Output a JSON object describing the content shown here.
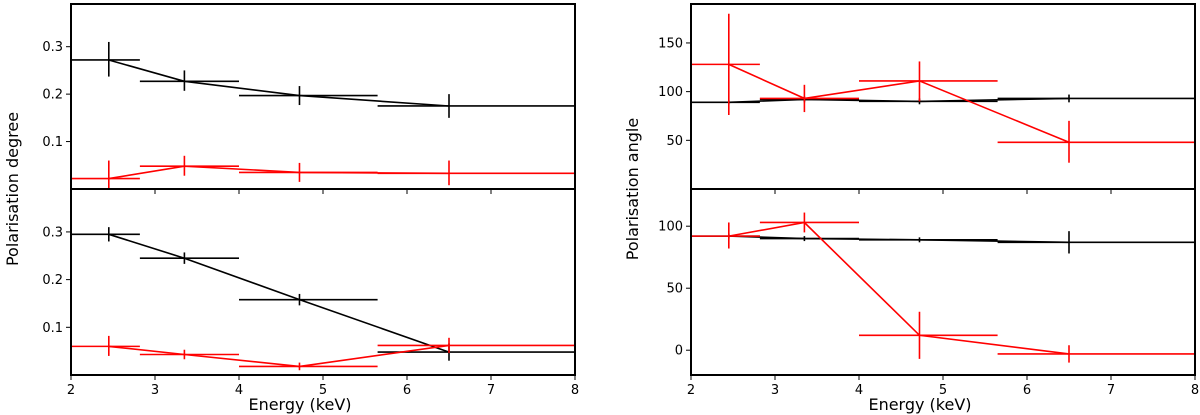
{
  "chart_data": [
    {
      "type": "line",
      "panel": "left-top",
      "xlabel": "",
      "ylabel": "Polarisation degree",
      "xlim": [
        2,
        8
      ],
      "ylim": [
        0,
        0.39
      ],
      "xticks": [
        2,
        3,
        4,
        5,
        6,
        7,
        8
      ],
      "yticks": [
        0.1,
        0.2,
        0.3
      ],
      "show_x_ticklabels": false,
      "series": [
        {
          "color": "#000000",
          "points": [
            {
              "x": 2.45,
              "xlo": 2.0,
              "xhi": 2.82,
              "y": 0.272,
              "ylo": 0.237,
              "yhi": 0.31
            },
            {
              "x": 3.35,
              "xlo": 2.82,
              "xhi": 4.0,
              "y": 0.227,
              "ylo": 0.207,
              "yhi": 0.25
            },
            {
              "x": 4.72,
              "xlo": 4.0,
              "xhi": 5.65,
              "y": 0.197,
              "ylo": 0.177,
              "yhi": 0.217
            },
            {
              "x": 6.5,
              "xlo": 5.65,
              "xhi": 8.0,
              "y": 0.175,
              "ylo": 0.15,
              "yhi": 0.2
            }
          ]
        },
        {
          "color": "#ff0000",
          "points": [
            {
              "x": 2.45,
              "xlo": 2.0,
              "xhi": 2.82,
              "y": 0.022,
              "ylo": 0.0,
              "yhi": 0.06
            },
            {
              "x": 3.35,
              "xlo": 2.82,
              "xhi": 4.0,
              "y": 0.048,
              "ylo": 0.028,
              "yhi": 0.07
            },
            {
              "x": 4.72,
              "xlo": 4.0,
              "xhi": 5.65,
              "y": 0.035,
              "ylo": 0.015,
              "yhi": 0.055
            },
            {
              "x": 6.5,
              "xlo": 5.65,
              "xhi": 8.0,
              "y": 0.033,
              "ylo": 0.008,
              "yhi": 0.06
            }
          ]
        }
      ]
    },
    {
      "type": "line",
      "panel": "left-bottom",
      "xlabel": "Energy (keV)",
      "ylabel": "",
      "xlim": [
        2,
        8
      ],
      "ylim": [
        0,
        0.39
      ],
      "xticks": [
        2,
        3,
        4,
        5,
        6,
        7,
        8
      ],
      "yticks": [
        0.1,
        0.2,
        0.3
      ],
      "show_x_ticklabels": true,
      "series": [
        {
          "color": "#000000",
          "points": [
            {
              "x": 2.45,
              "xlo": 2.0,
              "xhi": 2.82,
              "y": 0.295,
              "ylo": 0.28,
              "yhi": 0.31
            },
            {
              "x": 3.35,
              "xlo": 2.82,
              "xhi": 4.0,
              "y": 0.245,
              "ylo": 0.233,
              "yhi": 0.257
            },
            {
              "x": 4.72,
              "xlo": 4.0,
              "xhi": 5.65,
              "y": 0.158,
              "ylo": 0.146,
              "yhi": 0.17
            },
            {
              "x": 6.5,
              "xlo": 5.65,
              "xhi": 8.0,
              "y": 0.048,
              "ylo": 0.03,
              "yhi": 0.066
            }
          ]
        },
        {
          "color": "#ff0000",
          "points": [
            {
              "x": 2.45,
              "xlo": 2.0,
              "xhi": 2.82,
              "y": 0.06,
              "ylo": 0.04,
              "yhi": 0.082
            },
            {
              "x": 3.35,
              "xlo": 2.82,
              "xhi": 4.0,
              "y": 0.043,
              "ylo": 0.033,
              "yhi": 0.053
            },
            {
              "x": 4.72,
              "xlo": 4.0,
              "xhi": 5.65,
              "y": 0.018,
              "ylo": 0.01,
              "yhi": 0.026
            },
            {
              "x": 6.5,
              "xlo": 5.65,
              "xhi": 8.0,
              "y": 0.062,
              "ylo": 0.046,
              "yhi": 0.078
            }
          ]
        }
      ]
    },
    {
      "type": "line",
      "panel": "right-top",
      "xlabel": "",
      "ylabel": "Polarisation angle",
      "xlim": [
        2,
        8
      ],
      "ylim": [
        0,
        190
      ],
      "xticks": [
        2,
        3,
        4,
        5,
        6,
        7,
        8
      ],
      "yticks": [
        50,
        100,
        150
      ],
      "show_x_ticklabels": false,
      "series": [
        {
          "color": "#000000",
          "points": [
            {
              "x": 2.45,
              "xlo": 2.0,
              "xhi": 2.82,
              "y": 89,
              "ylo": 87,
              "yhi": 91
            },
            {
              "x": 3.35,
              "xlo": 2.82,
              "xhi": 4.0,
              "y": 92,
              "ylo": 89,
              "yhi": 95
            },
            {
              "x": 4.72,
              "xlo": 4.0,
              "xhi": 5.65,
              "y": 90,
              "ylo": 87,
              "yhi": 93
            },
            {
              "x": 6.5,
              "xlo": 5.65,
              "xhi": 8.0,
              "y": 93,
              "ylo": 89,
              "yhi": 97
            }
          ]
        },
        {
          "color": "#ff0000",
          "points": [
            {
              "x": 2.45,
              "xlo": 2.0,
              "xhi": 2.82,
              "y": 128,
              "ylo": 76,
              "yhi": 180
            },
            {
              "x": 3.35,
              "xlo": 2.82,
              "xhi": 4.0,
              "y": 93,
              "ylo": 79,
              "yhi": 107
            },
            {
              "x": 4.72,
              "xlo": 4.0,
              "xhi": 5.65,
              "y": 111,
              "ylo": 90,
              "yhi": 131
            },
            {
              "x": 6.5,
              "xlo": 5.65,
              "xhi": 8.0,
              "y": 48,
              "ylo": 27,
              "yhi": 70
            }
          ]
        }
      ]
    },
    {
      "type": "line",
      "panel": "right-bottom",
      "xlabel": "Energy (keV)",
      "ylabel": "",
      "xlim": [
        2,
        8
      ],
      "ylim": [
        -20,
        130
      ],
      "xticks": [
        2,
        3,
        4,
        5,
        6,
        7,
        8
      ],
      "yticks": [
        0,
        50,
        100
      ],
      "show_x_ticklabels": true,
      "series": [
        {
          "color": "#000000",
          "points": [
            {
              "x": 2.45,
              "xlo": 2.0,
              "xhi": 2.82,
              "y": 92,
              "ylo": 90,
              "yhi": 94
            },
            {
              "x": 3.35,
              "xlo": 2.82,
              "xhi": 4.0,
              "y": 90,
              "ylo": 88,
              "yhi": 92
            },
            {
              "x": 4.72,
              "xlo": 4.0,
              "xhi": 5.65,
              "y": 89,
              "ylo": 87,
              "yhi": 91
            },
            {
              "x": 6.5,
              "xlo": 5.65,
              "xhi": 8.0,
              "y": 87,
              "ylo": 78,
              "yhi": 96
            }
          ]
        },
        {
          "color": "#ff0000",
          "points": [
            {
              "x": 2.45,
              "xlo": 2.0,
              "xhi": 2.82,
              "y": 92,
              "ylo": 82,
              "yhi": 103
            },
            {
              "x": 3.35,
              "xlo": 2.82,
              "xhi": 4.0,
              "y": 103,
              "ylo": 95,
              "yhi": 111
            },
            {
              "x": 4.72,
              "xlo": 4.0,
              "xhi": 5.65,
              "y": 12,
              "ylo": -7,
              "yhi": 31
            },
            {
              "x": 6.5,
              "xlo": 5.65,
              "xhi": 8.0,
              "y": -3,
              "ylo": -10,
              "yhi": 4
            }
          ]
        }
      ]
    }
  ]
}
